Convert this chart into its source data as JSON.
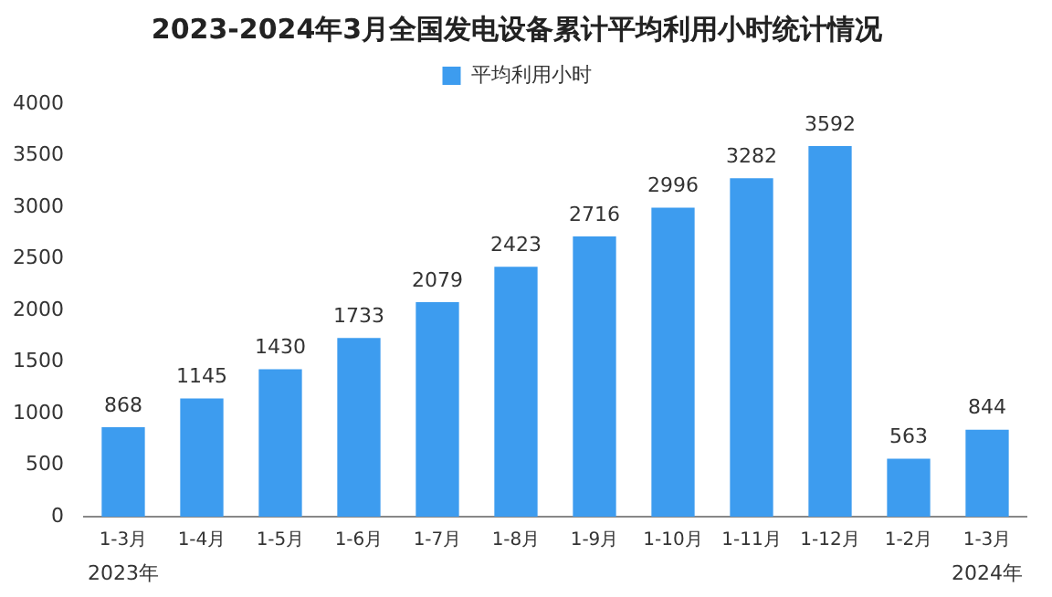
{
  "chart_data": {
    "type": "bar",
    "title": "2023-2024年3月全国发电设备累计平均利用小时统计情况",
    "categories": [
      "1-3月",
      "1-4月",
      "1-5月",
      "1-6月",
      "1-7月",
      "1-8月",
      "1-9月",
      "1-10月",
      "1-11月",
      "1-12月",
      "1-2月",
      "1-3月"
    ],
    "series": [
      {
        "name": "平均利用小时",
        "color": "#3d9cef",
        "values": [
          868,
          1145,
          1430,
          1733,
          2079,
          2423,
          2716,
          2996,
          3282,
          3592,
          563,
          844
        ]
      }
    ],
    "ylim": [
      0,
      4000
    ],
    "yticks": [
      0,
      500,
      1000,
      1500,
      2000,
      2500,
      3000,
      3500,
      4000
    ],
    "grid": false,
    "legend": "top",
    "data_labels": true,
    "annotations": [
      "2023年",
      "2024年"
    ]
  }
}
